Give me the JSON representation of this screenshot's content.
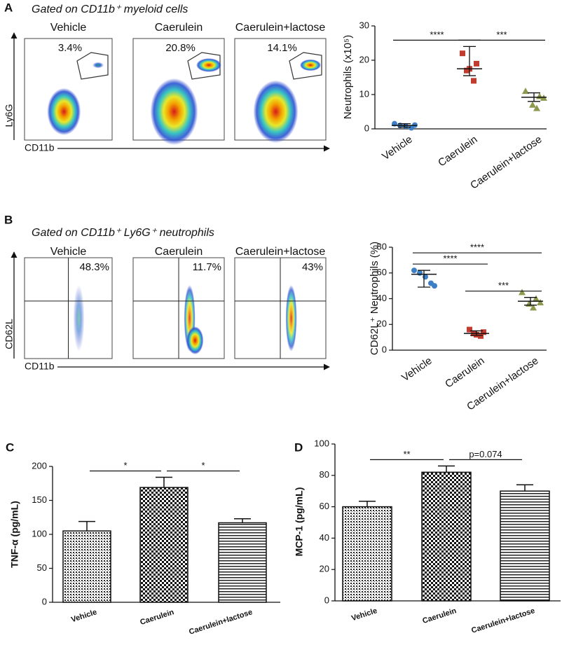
{
  "flow_cytometry": [
    {
      "panel": "A",
      "title": "Gated on CD11b⁺ myeloid cells",
      "groups": [
        "Vehicle",
        "Caerulein",
        "Caerulein+lactose"
      ],
      "percents": [
        "3.4%",
        "20.8%",
        "14.1%"
      ],
      "y_label": "Ly6G",
      "x_label": "CD11b"
    },
    {
      "panel": "B",
      "title": "Gated on CD11b⁺ Ly6G⁺ neutrophils",
      "groups": [
        "Vehicle",
        "Caerulein",
        "Caerulein+lactose"
      ],
      "percents": [
        "48.3%",
        "11.7%",
        "43%"
      ],
      "y_label": "CD62L",
      "x_label": "CD11b"
    }
  ],
  "chart_data": [
    {
      "type": "dot",
      "ylabel": "Neutrophils (x10⁵)",
      "categories": [
        "Vehicle",
        "Caerulein",
        "Caerulein+lactose"
      ],
      "colors": [
        "#3d7fc6",
        "#c23b2f",
        "#8c9a4e"
      ],
      "points": [
        [
          1.5,
          1.0,
          0.8,
          0.3,
          1.1
        ],
        [
          22,
          19,
          17.5,
          14,
          17
        ],
        [
          11,
          9.5,
          9,
          7,
          6
        ]
      ],
      "center": [
        1,
        17.5,
        9.2
      ],
      "lower": [
        0.5,
        15.5,
        8
      ],
      "upper": [
        1.5,
        24,
        10.5
      ],
      "ylim": [
        0,
        30
      ],
      "yticks": [
        0,
        10,
        20,
        30
      ],
      "annotations": [
        {
          "text": "****",
          "from": 0,
          "to": 1
        },
        {
          "text": "***",
          "from": 1,
          "to": 2
        }
      ]
    },
    {
      "type": "dot",
      "ylabel": "CD62L⁺ Neutrophils (%)",
      "categories": [
        "Vehicle",
        "Caerulein",
        "Caerulein+lactose"
      ],
      "colors": [
        "#3d7fc6",
        "#c23b2f",
        "#8c9a4e"
      ],
      "points": [
        [
          62,
          60,
          57,
          52,
          50
        ],
        [
          16,
          14,
          12,
          11,
          13
        ],
        [
          45,
          40,
          37,
          36,
          33
        ]
      ],
      "center": [
        59,
        13,
        38
      ],
      "lower": [
        49,
        11.5,
        35
      ],
      "upper": [
        62,
        15,
        41
      ],
      "ylim": [
        0,
        80
      ],
      "yticks": [
        0,
        20,
        40,
        60,
        80
      ],
      "annotations": [
        {
          "text": "****",
          "from": 0,
          "to": 1
        },
        {
          "text": "****",
          "from": 0,
          "to": 2
        },
        {
          "text": "***",
          "from": 1,
          "to": 2
        }
      ]
    },
    {
      "type": "bar",
      "panel": "C",
      "ylabel": "TNF-α (pg/mL)",
      "categories": [
        "Vehicle",
        "Caerulein",
        "Caerulein+lactose"
      ],
      "values": [
        105,
        169,
        117
      ],
      "errors": [
        14,
        15,
        6
      ],
      "ylim": [
        0,
        200
      ],
      "yticks": [
        0,
        50,
        100,
        150,
        200
      ],
      "annotations": [
        {
          "text": "*",
          "from": 0,
          "to": 1
        },
        {
          "text": "*",
          "from": 1,
          "to": 2
        }
      ]
    },
    {
      "type": "bar",
      "panel": "D",
      "ylabel": "MCP-1 (pg/mL)",
      "categories": [
        "Vehicle",
        "Caerulein",
        "Caerulein+lactose"
      ],
      "values": [
        60,
        82,
        70
      ],
      "errors": [
        3.5,
        4,
        4
      ],
      "ylim": [
        0,
        100
      ],
      "yticks": [
        0,
        20,
        40,
        60,
        80,
        100
      ],
      "annotations": [
        {
          "text": "**",
          "from": 0,
          "to": 1
        },
        {
          "text": "p=0.074",
          "from": 1,
          "to": 2
        }
      ]
    }
  ]
}
